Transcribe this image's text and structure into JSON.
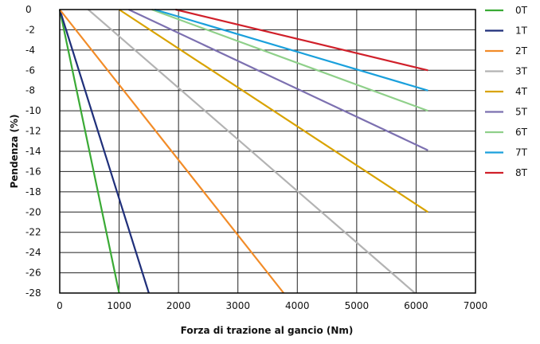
{
  "chart_data": {
    "type": "line",
    "xlabel": "Forza di trazione al gancio (Nm)",
    "ylabel": "Pendenza (%)",
    "xlim": [
      0,
      7000
    ],
    "ylim": [
      -28,
      0
    ],
    "x_ticks": [
      "0",
      "1000",
      "2000",
      "3000",
      "4000",
      "5000",
      "6000",
      "7000"
    ],
    "y_ticks": [
      "0",
      "-2",
      "-4",
      "-6",
      "-8",
      "-10",
      "-12",
      "-14",
      "-16",
      "-18",
      "-20",
      "-22",
      "-24",
      "-26",
      "-28"
    ],
    "grid": true,
    "legend_position": "right",
    "series": [
      {
        "name": "0T",
        "color": "#3aaa35",
        "points": [
          [
            0,
            0
          ],
          [
            1000,
            -28
          ]
        ]
      },
      {
        "name": "1T",
        "color": "#1f2f7a",
        "points": [
          [
            0,
            0
          ],
          [
            1500,
            -28
          ]
        ]
      },
      {
        "name": "2T",
        "color": "#f28c28",
        "points": [
          [
            0,
            0
          ],
          [
            3770,
            -28
          ]
        ]
      },
      {
        "name": "3T",
        "color": "#b3b3b3",
        "points": [
          [
            480,
            0
          ],
          [
            5980,
            -28
          ]
        ]
      },
      {
        "name": "4T",
        "color": "#d9a300",
        "points": [
          [
            1000,
            0
          ],
          [
            6200,
            -20
          ]
        ]
      },
      {
        "name": "5T",
        "color": "#7c70b0",
        "points": [
          [
            1160,
            0
          ],
          [
            6200,
            -13.9
          ]
        ]
      },
      {
        "name": "6T",
        "color": "#8fd08a",
        "points": [
          [
            1550,
            0
          ],
          [
            6200,
            -10
          ]
        ]
      },
      {
        "name": "7T",
        "color": "#1aa0dc",
        "points": [
          [
            1600,
            0
          ],
          [
            6200,
            -8
          ]
        ]
      },
      {
        "name": "8T",
        "color": "#d0202a",
        "points": [
          [
            1950,
            0
          ],
          [
            6200,
            -6
          ]
        ]
      }
    ]
  }
}
